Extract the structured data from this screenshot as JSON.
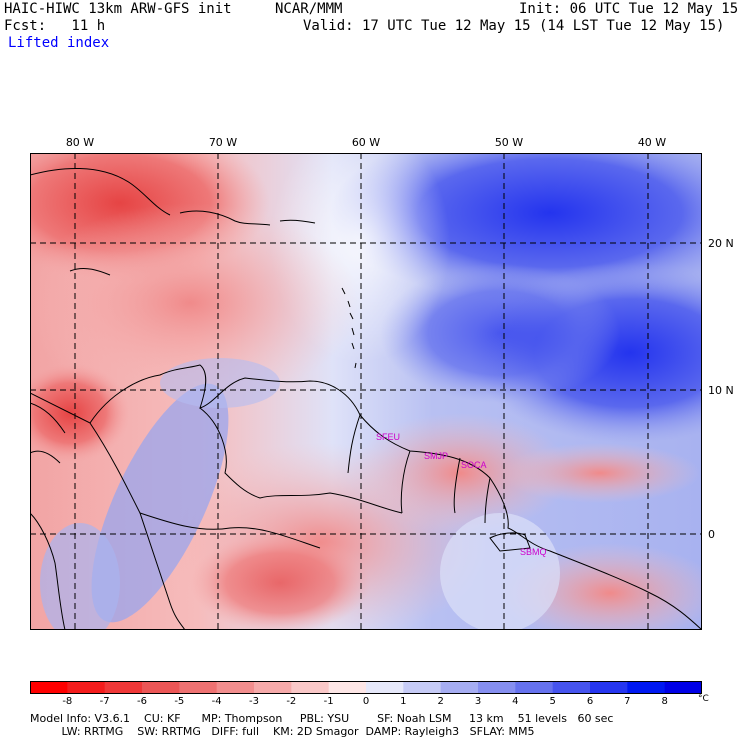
{
  "header": {
    "title_left": "HAIC-HIWC 13km ARW-GFS init",
    "org": "NCAR/MMM",
    "init": "Init: 06 UTC Tue 12 May 15",
    "fcst": "Fcst:   11 h",
    "valid": "Valid: 17 UTC Tue 12 May 15 (14 LST Tue 12 May 15)",
    "field": "Lifted index"
  },
  "map": {
    "lon_labels": [
      "80 W",
      "70 W",
      "60 W",
      "50 W",
      "40 W"
    ],
    "lat_labels": [
      "20 N",
      "10 N",
      "0"
    ],
    "stations": [
      "SFEU",
      "SMJP",
      "SOCA",
      "SBMQ"
    ],
    "colors": {
      "very_unstable": "#e84040",
      "unstable": "#f4a0a0",
      "neutral": "#ffffff",
      "stable": "#a8b4f0",
      "very_stable": "#2a3cf0",
      "coast": "#000000",
      "station": "#cc00cc"
    }
  },
  "colorbar": {
    "ticks": [
      "-8",
      "-7",
      "-6",
      "-5",
      "-4",
      "-3",
      "-2",
      "-1",
      "0",
      "1",
      "2",
      "3",
      "4",
      "5",
      "6",
      "7",
      "8"
    ],
    "unit": "°C",
    "colors": [
      "#ff0000",
      "#f41c1c",
      "#f03838",
      "#ec5656",
      "#ee7272",
      "#f28e8e",
      "#f6aaaa",
      "#fac8c8",
      "#fde6e6",
      "#e6e8fa",
      "#c6cbf6",
      "#a6adf2",
      "#868ff0",
      "#6672ee",
      "#4654ee",
      "#2636f0",
      "#0018f2",
      "#0000e6"
    ]
  },
  "footer": {
    "line1": "Model Info: V3.6.1    CU: KF      MP: Thompson     PBL: YSU        SF: Noah LSM     13 km    51 levels   60 sec",
    "line2": "         LW: RRTMG    SW: RRTMG   DIFF: full    KM: 2D Smagor  DAMP: Rayleigh3   SFLAY: MM5"
  }
}
